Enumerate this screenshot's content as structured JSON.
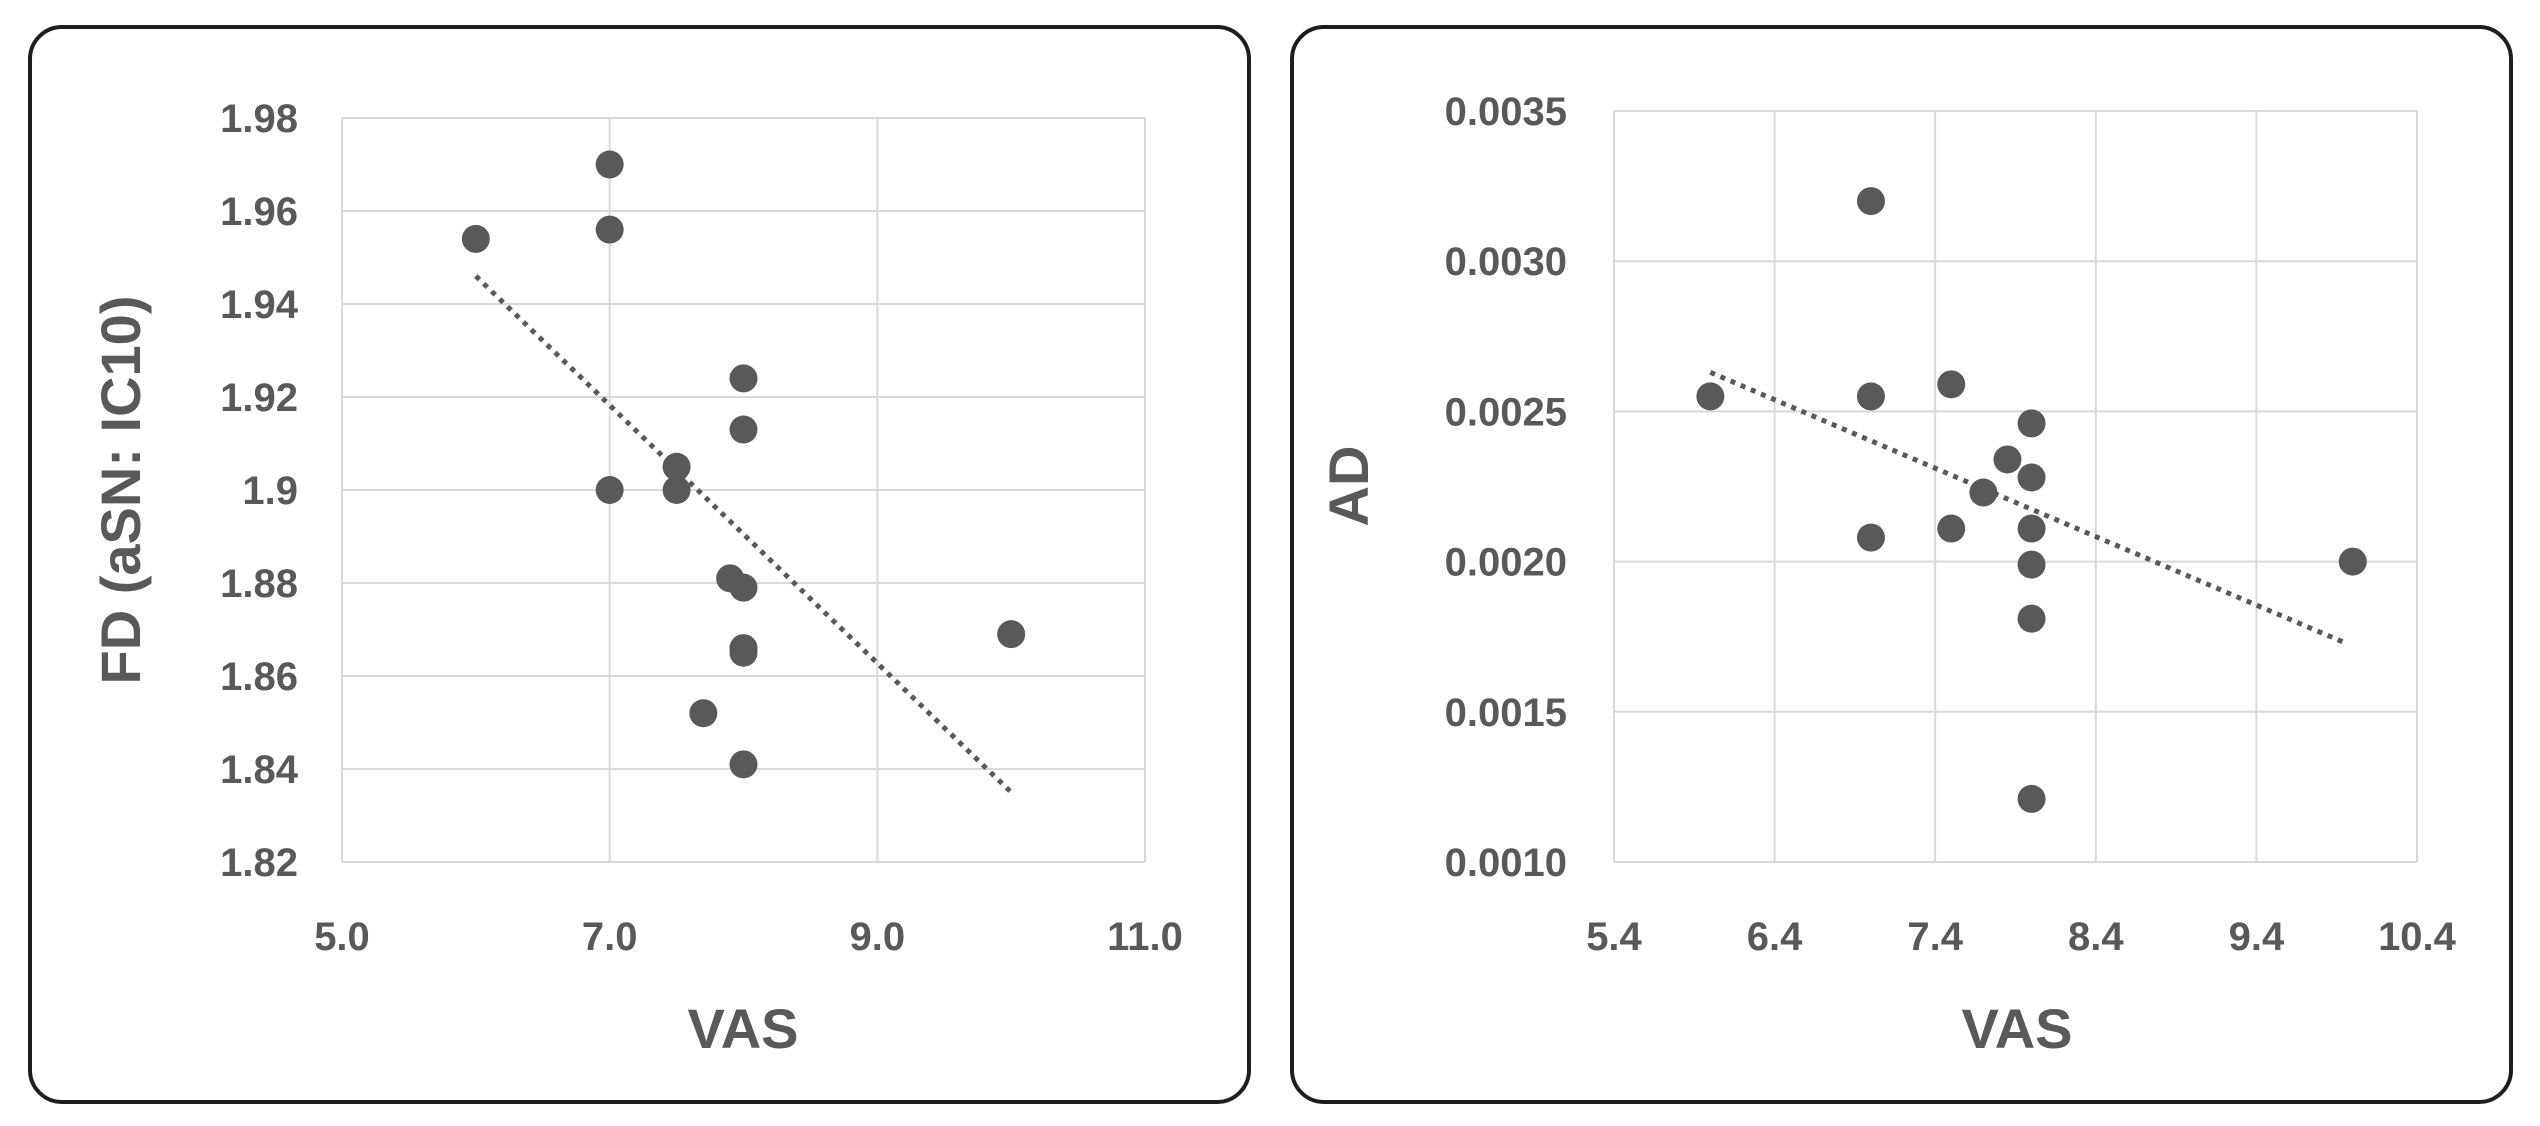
{
  "chart_data": [
    {
      "type": "scatter",
      "xlabel": "VAS",
      "ylabel": "FD (aSN: IC10)",
      "xlim": [
        5.0,
        11.0
      ],
      "ylim": [
        1.82,
        1.98
      ],
      "x_ticks": [
        "5.0",
        "7.0",
        "9.0",
        "11.0"
      ],
      "x_tick_values": [
        5.0,
        7.0,
        9.0,
        11.0
      ],
      "y_ticks": [
        "1.82",
        "1.84",
        "1.86",
        "1.88",
        "1.9",
        "1.92",
        "1.94",
        "1.96",
        "1.98"
      ],
      "y_tick_values": [
        1.82,
        1.84,
        1.86,
        1.88,
        1.9,
        1.92,
        1.94,
        1.96,
        1.98
      ],
      "grid": true,
      "colors": {
        "point": "#595959",
        "grid": "#d9d9d9",
        "text": "#595959"
      },
      "points": [
        {
          "x": 6.0,
          "y": 1.954
        },
        {
          "x": 7.0,
          "y": 1.97
        },
        {
          "x": 7.0,
          "y": 1.956
        },
        {
          "x": 7.0,
          "y": 1.9
        },
        {
          "x": 7.5,
          "y": 1.905
        },
        {
          "x": 7.5,
          "y": 1.9
        },
        {
          "x": 7.7,
          "y": 1.852
        },
        {
          "x": 7.9,
          "y": 1.881
        },
        {
          "x": 8.0,
          "y": 1.924
        },
        {
          "x": 8.0,
          "y": 1.913
        },
        {
          "x": 8.0,
          "y": 1.879
        },
        {
          "x": 8.0,
          "y": 1.866
        },
        {
          "x": 8.0,
          "y": 1.865
        },
        {
          "x": 8.0,
          "y": 1.841
        },
        {
          "x": 10.0,
          "y": 1.869
        }
      ],
      "trendline": {
        "style": "dotted",
        "x0": 6.0,
        "y0": 1.946,
        "x1": 10.0,
        "y1": 1.835
      }
    },
    {
      "type": "scatter",
      "xlabel": "VAS",
      "ylabel": "AD",
      "xlim": [
        5.4,
        10.4
      ],
      "ylim": [
        0.001,
        0.0035
      ],
      "x_ticks": [
        "5.4",
        "6.4",
        "7.4",
        "8.4",
        "9.4",
        "10.4"
      ],
      "x_tick_values": [
        5.4,
        6.4,
        7.4,
        8.4,
        9.4,
        10.4
      ],
      "y_ticks": [
        "0.0010",
        "0.0015",
        "0.0020",
        "0.0025",
        "0.0030",
        "0.0035"
      ],
      "y_tick_values": [
        0.001,
        0.0015,
        0.002,
        0.0025,
        0.003,
        0.0035
      ],
      "grid": true,
      "colors": {
        "point": "#595959",
        "grid": "#d9d9d9",
        "text": "#595959"
      },
      "points": [
        {
          "x": 6.0,
          "y": 0.00255
        },
        {
          "x": 7.0,
          "y": 0.0032
        },
        {
          "x": 7.0,
          "y": 0.00255
        },
        {
          "x": 7.0,
          "y": 0.00208
        },
        {
          "x": 7.5,
          "y": 0.00259
        },
        {
          "x": 7.5,
          "y": 0.00211
        },
        {
          "x": 7.7,
          "y": 0.00223
        },
        {
          "x": 7.85,
          "y": 0.00234
        },
        {
          "x": 8.0,
          "y": 0.00246
        },
        {
          "x": 8.0,
          "y": 0.00228
        },
        {
          "x": 8.0,
          "y": 0.00211
        },
        {
          "x": 8.0,
          "y": 0.00199
        },
        {
          "x": 8.0,
          "y": 0.00181
        },
        {
          "x": 8.0,
          "y": 0.00121
        },
        {
          "x": 10.0,
          "y": 0.002
        }
      ],
      "trendline": {
        "style": "dotted",
        "x0": 6.0,
        "y0": 0.00263,
        "x1": 9.95,
        "y1": 0.00173
      }
    }
  ]
}
